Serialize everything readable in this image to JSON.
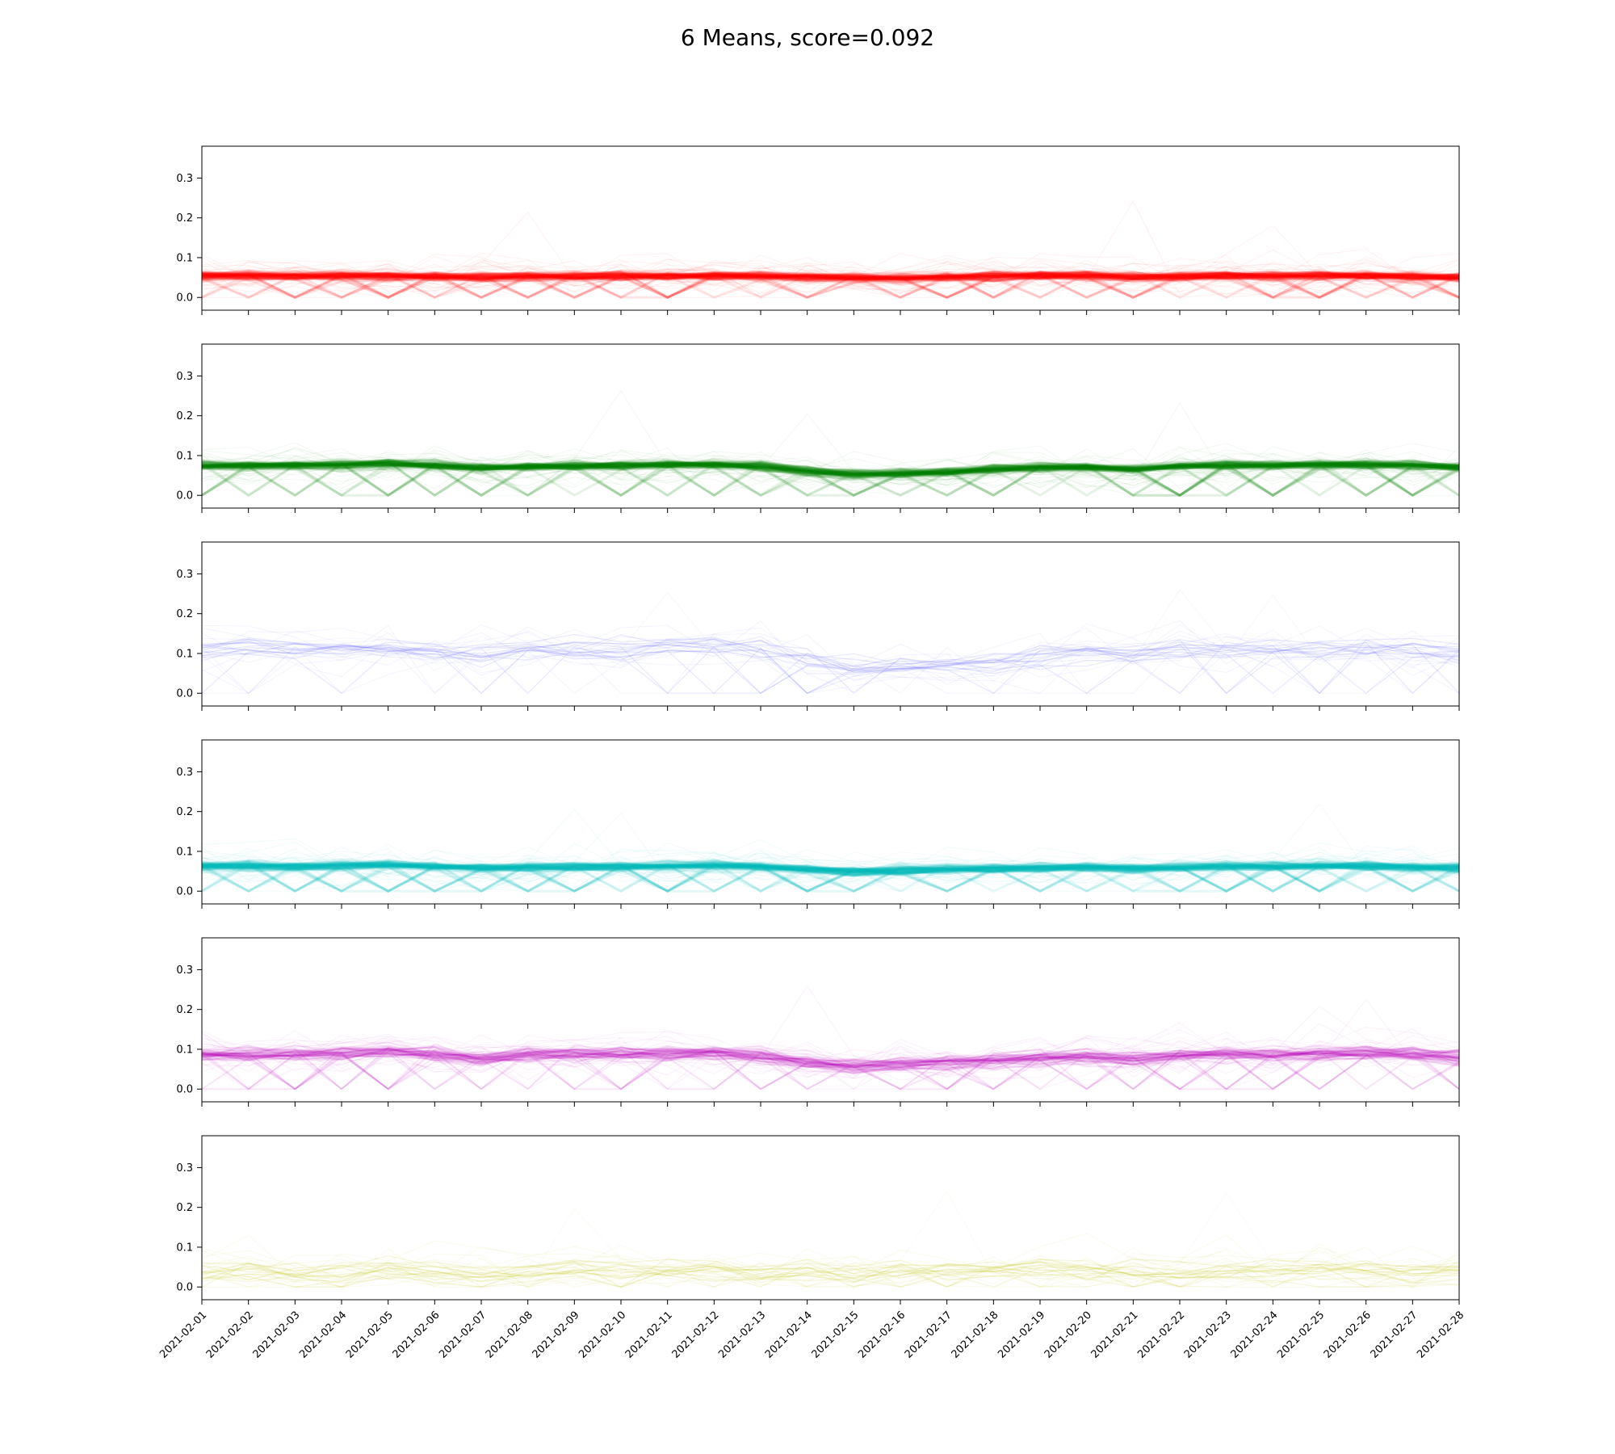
{
  "chart_data": {
    "type": "line",
    "title": "6 Means, score=0.092",
    "x": [
      "2021-02-01",
      "2021-02-02",
      "2021-02-03",
      "2021-02-04",
      "2021-02-05",
      "2021-02-06",
      "2021-02-07",
      "2021-02-08",
      "2021-02-09",
      "2021-02-10",
      "2021-02-11",
      "2021-02-12",
      "2021-02-13",
      "2021-02-14",
      "2021-02-15",
      "2021-02-16",
      "2021-02-17",
      "2021-02-18",
      "2021-02-19",
      "2021-02-20",
      "2021-02-21",
      "2021-02-22",
      "2021-02-23",
      "2021-02-24",
      "2021-02-25",
      "2021-02-26",
      "2021-02-27",
      "2021-02-28"
    ],
    "xlabel": "",
    "ylabel": "",
    "ylim": [
      -0.032,
      0.38
    ],
    "yticks": [
      "0.0",
      "0.1",
      "0.2",
      "0.3"
    ],
    "grid": false,
    "shared_x": true,
    "panels": [
      {
        "color": "#ff0000",
        "density": "dense",
        "mean_values": [
          0.055,
          0.055,
          0.054,
          0.054,
          0.055,
          0.053,
          0.052,
          0.054,
          0.054,
          0.055,
          0.055,
          0.056,
          0.054,
          0.053,
          0.05,
          0.05,
          0.053,
          0.054,
          0.056,
          0.056,
          0.051,
          0.053,
          0.055,
          0.055,
          0.055,
          0.056,
          0.053,
          0.052
        ]
      },
      {
        "color": "#008000",
        "density": "dense",
        "mean_values": [
          0.075,
          0.075,
          0.076,
          0.077,
          0.08,
          0.076,
          0.069,
          0.073,
          0.075,
          0.075,
          0.077,
          0.078,
          0.072,
          0.061,
          0.052,
          0.056,
          0.059,
          0.066,
          0.07,
          0.071,
          0.066,
          0.073,
          0.076,
          0.076,
          0.077,
          0.078,
          0.075,
          0.07
        ]
      },
      {
        "color": "#6666ff",
        "density": "sparse",
        "mean_values": [
          0.11,
          0.115,
          0.113,
          0.112,
          0.114,
          0.11,
          0.102,
          0.11,
          0.113,
          0.108,
          0.115,
          0.122,
          0.112,
          0.085,
          0.06,
          0.07,
          0.07,
          0.078,
          0.09,
          0.1,
          0.095,
          0.108,
          0.112,
          0.11,
          0.11,
          0.113,
          0.108,
          0.098
        ]
      },
      {
        "color": "#00bfbf",
        "density": "dense",
        "mean_values": [
          0.063,
          0.064,
          0.062,
          0.064,
          0.066,
          0.062,
          0.058,
          0.06,
          0.062,
          0.062,
          0.063,
          0.065,
          0.062,
          0.055,
          0.05,
          0.052,
          0.055,
          0.057,
          0.059,
          0.06,
          0.057,
          0.061,
          0.063,
          0.063,
          0.063,
          0.064,
          0.061,
          0.058
        ]
      },
      {
        "color": "#bf00bf",
        "density": "medium",
        "mean_values": [
          0.088,
          0.087,
          0.088,
          0.09,
          0.094,
          0.088,
          0.078,
          0.085,
          0.088,
          0.087,
          0.088,
          0.09,
          0.083,
          0.068,
          0.058,
          0.062,
          0.066,
          0.073,
          0.079,
          0.082,
          0.076,
          0.085,
          0.088,
          0.087,
          0.088,
          0.09,
          0.087,
          0.08
        ]
      },
      {
        "color": "#bfbf00",
        "density": "sparse",
        "mean_values": [
          0.04,
          0.042,
          0.038,
          0.04,
          0.044,
          0.04,
          0.035,
          0.04,
          0.042,
          0.044,
          0.045,
          0.045,
          0.04,
          0.038,
          0.04,
          0.042,
          0.043,
          0.044,
          0.045,
          0.044,
          0.042,
          0.044,
          0.046,
          0.046,
          0.045,
          0.046,
          0.044,
          0.044
        ]
      }
    ]
  }
}
